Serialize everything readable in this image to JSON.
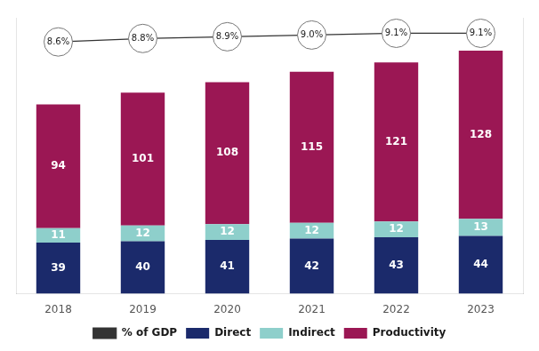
{
  "chart_data": {
    "type": "bar",
    "categories": [
      "2018",
      "2019",
      "2020",
      "2021",
      "2022",
      "2023"
    ],
    "stacked": true,
    "series": [
      {
        "name": "Direct",
        "color": "#1b2a6b",
        "values": [
          39,
          40,
          41,
          42,
          43,
          44
        ]
      },
      {
        "name": "Indirect",
        "color": "#8ecfcb",
        "values": [
          11,
          12,
          12,
          12,
          12,
          13
        ]
      },
      {
        "name": "Productivity",
        "color": "#9b1754",
        "values": [
          94,
          101,
          108,
          115,
          121,
          128
        ]
      },
      {
        "name": "% of GDP",
        "type": "line",
        "axis": "y2",
        "color": "#333333",
        "marker": "circle",
        "values": [
          8.6,
          8.8,
          8.9,
          9.0,
          9.1,
          9.1
        ],
        "value_labels": [
          "8.6%",
          "8.8%",
          "8.9%",
          "9.0%",
          "9.1%",
          "9.1%"
        ]
      }
    ],
    "ylim": [
      0,
      210
    ],
    "yticks": [],
    "y2lim": [
      -6,
      10
    ],
    "y2ticks": [],
    "data_labels": true,
    "tick_labels": "x",
    "grid": false,
    "legend": "bottom"
  }
}
